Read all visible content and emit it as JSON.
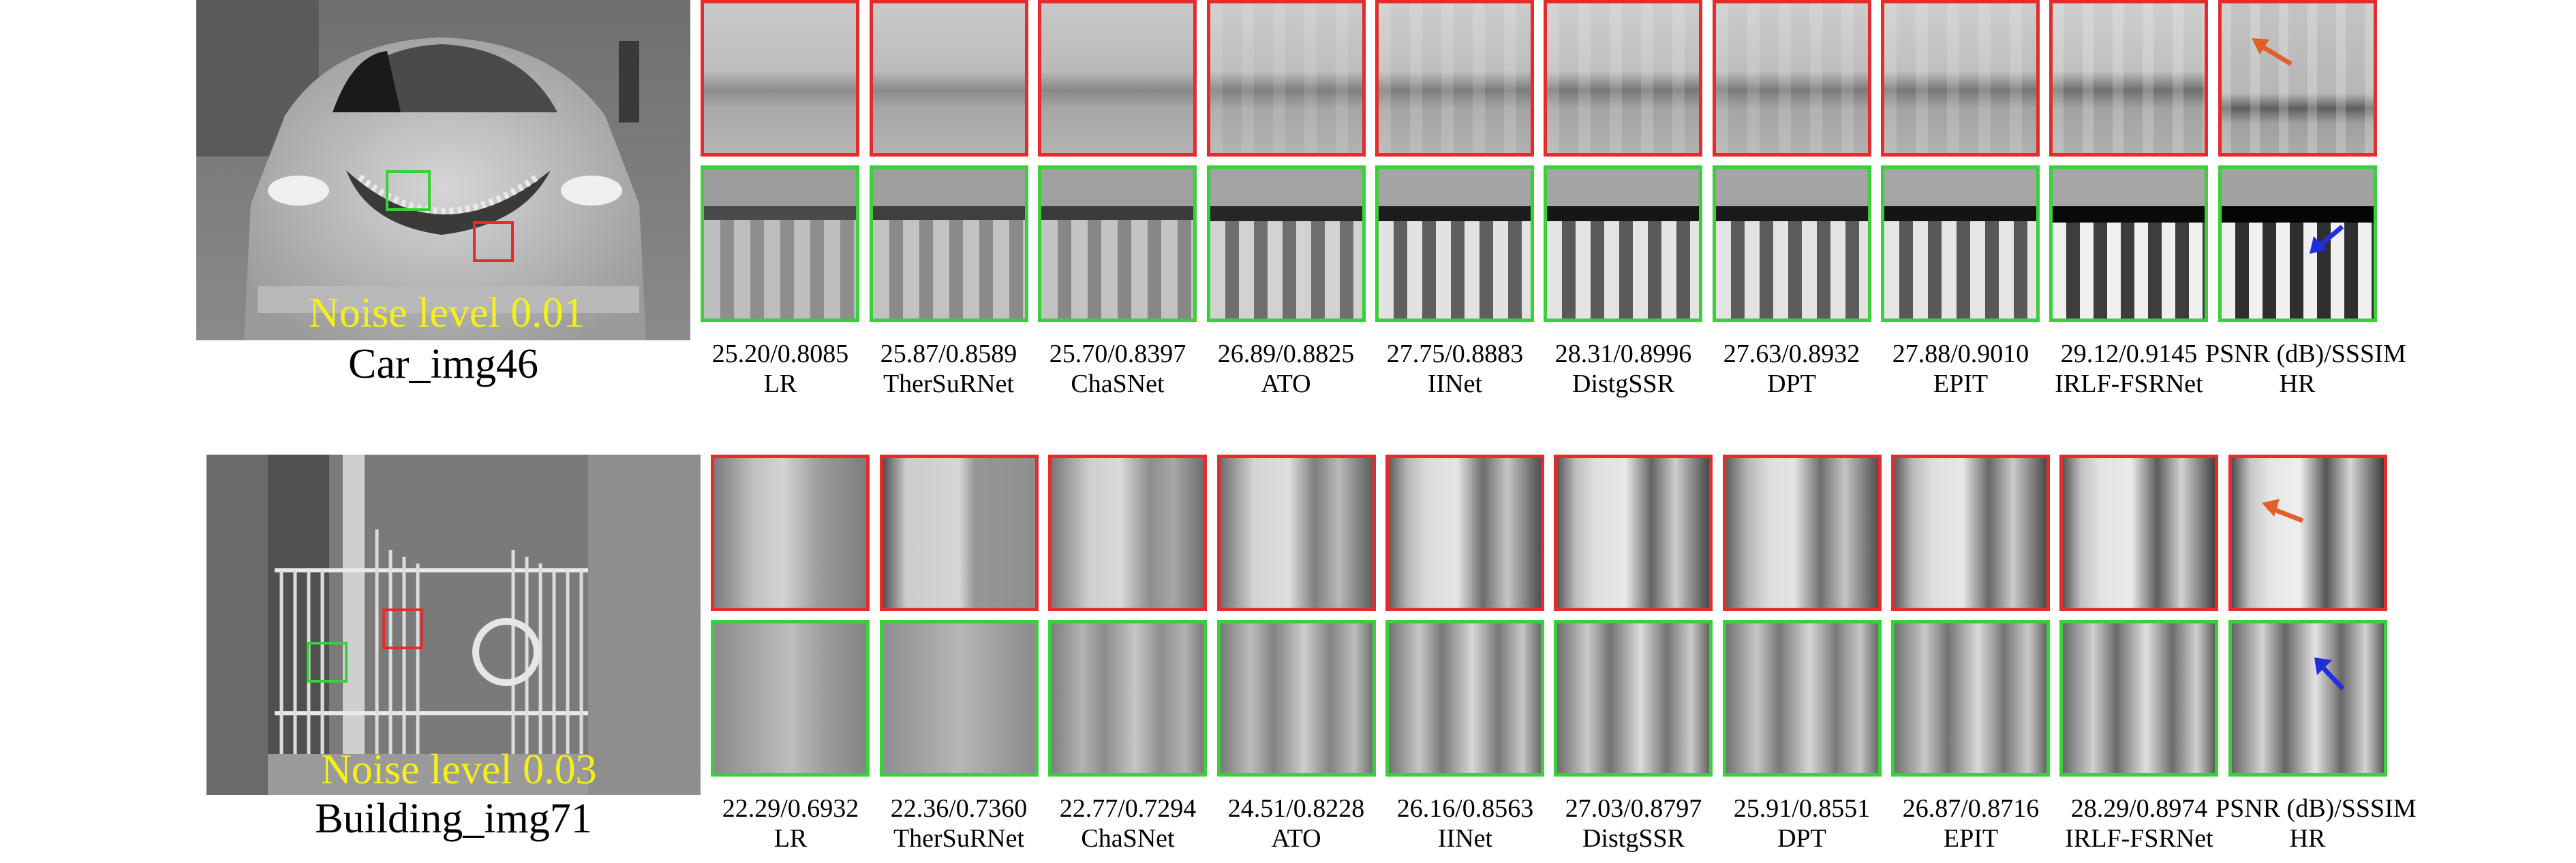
{
  "rows": [
    {
      "scene_name": "Car_img46",
      "noise_label": "Noise level 0.01",
      "methods": [
        {
          "metric": "25.20/0.8085",
          "name": "LR"
        },
        {
          "metric": "25.87/0.8589",
          "name": "TherSuRNet"
        },
        {
          "metric": "25.70/0.8397",
          "name": "ChaSNet"
        },
        {
          "metric": "26.89/0.8825",
          "name": "ATO"
        },
        {
          "metric": "27.75/0.8883",
          "name": "IINet"
        },
        {
          "metric": "28.31/0.8996",
          "name": "DistgSSR"
        },
        {
          "metric": "27.63/0.8932",
          "name": "DPT"
        },
        {
          "metric": "27.88/0.9010",
          "name": "EPIT"
        },
        {
          "metric": "29.12/0.9145",
          "name": "IRLF-FSRNet"
        },
        {
          "metric": "PSNR (dB)/SSSIM",
          "name": "HR"
        }
      ]
    },
    {
      "scene_name": "Building_img71",
      "noise_label": "Noise level 0.03",
      "methods": [
        {
          "metric": "22.29/0.6932",
          "name": "LR"
        },
        {
          "metric": "22.36/0.7360",
          "name": "TherSuRNet"
        },
        {
          "metric": "22.77/0.7294",
          "name": "ChaSNet"
        },
        {
          "metric": "24.51/0.8228",
          "name": "ATO"
        },
        {
          "metric": "26.16/0.8563",
          "name": "IINet"
        },
        {
          "metric": "27.03/0.8797",
          "name": "DistgSSR"
        },
        {
          "metric": "25.91/0.8551",
          "name": "DPT"
        },
        {
          "metric": "26.87/0.8716",
          "name": "EPIT"
        },
        {
          "metric": "28.29/0.8974",
          "name": "IRLF-FSRNet"
        },
        {
          "metric": "PSNR (dB)/SSSIM",
          "name": "HR"
        }
      ]
    }
  ],
  "colors": {
    "red_box": "#e52b2b",
    "green_box": "#39d139",
    "noise_text": "#f5ef1a",
    "arrow_orange": "#e0602a",
    "arrow_blue": "#1f2fe0"
  }
}
